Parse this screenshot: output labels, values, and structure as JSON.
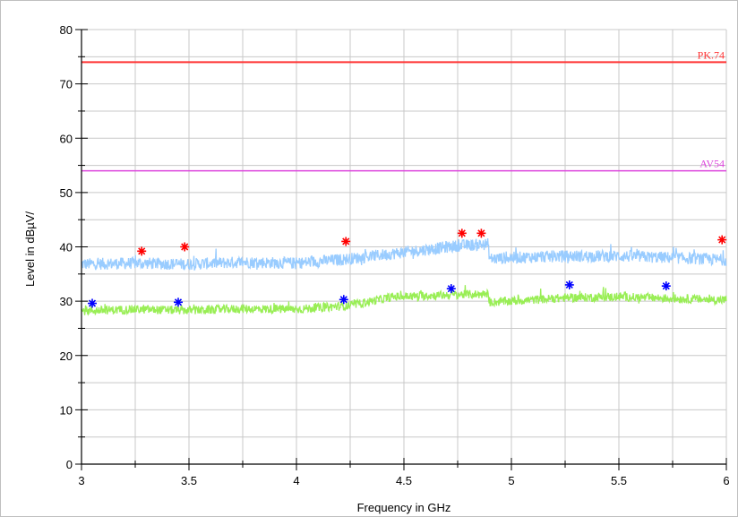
{
  "chart_data": {
    "type": "line",
    "xlabel": "Frequency in GHz",
    "ylabel": "Level in dBµV/",
    "xlim": [
      3,
      6
    ],
    "ylim": [
      0,
      80
    ],
    "x_ticks": [
      3,
      3.5,
      4,
      4.5,
      5,
      5.5,
      6
    ],
    "x_tick_labels": [
      "3",
      "3.5",
      "4",
      "4.5",
      "5",
      "5.5",
      "6"
    ],
    "y_ticks": [
      0,
      10,
      20,
      30,
      40,
      50,
      60,
      70,
      80
    ],
    "y_tick_labels": [
      "0",
      "10",
      "20",
      "30",
      "40",
      "50",
      "60",
      "70",
      "80"
    ],
    "grid": true,
    "limit_lines": [
      {
        "label": "PK.74",
        "value": 74,
        "color": "#ff3333"
      },
      {
        "label": "AV54",
        "value": 54,
        "color": "#dd44dd"
      }
    ],
    "series": [
      {
        "style": "noisy-band",
        "color": "#99ccff",
        "x": [
          3.0,
          3.25,
          3.5,
          3.75,
          4.0,
          4.25,
          4.5,
          4.75,
          4.89,
          4.9,
          5.0,
          5.25,
          5.5,
          5.75,
          6.0
        ],
        "values": [
          36.8,
          37.0,
          36.8,
          37.2,
          37.0,
          37.8,
          39.0,
          40.2,
          40.5,
          37.8,
          38.0,
          38.3,
          38.3,
          38.0,
          37.6
        ],
        "noise": 2.2
      },
      {
        "style": "noisy-band",
        "color": "#99ee55",
        "x": [
          3.0,
          3.25,
          3.5,
          3.75,
          4.0,
          4.25,
          4.45,
          4.75,
          4.89,
          4.9,
          5.0,
          5.25,
          5.5,
          5.75,
          6.0
        ],
        "values": [
          28.2,
          28.5,
          28.3,
          28.6,
          28.5,
          29.2,
          30.8,
          31.2,
          31.3,
          29.8,
          30.0,
          30.6,
          30.8,
          30.5,
          30.2
        ],
        "noise": 1.6
      },
      {
        "style": "markers",
        "color": "#ff0000",
        "x": [
          3.28,
          3.48,
          4.23,
          4.77,
          4.86,
          5.98
        ],
        "values": [
          39.2,
          40.0,
          41.0,
          42.5,
          42.5,
          41.3
        ]
      },
      {
        "style": "markers",
        "color": "#0000ff",
        "x": [
          3.05,
          3.45,
          4.22,
          4.72,
          5.27,
          5.72
        ],
        "values": [
          29.6,
          29.8,
          30.3,
          32.3,
          33.0,
          32.8
        ]
      }
    ]
  }
}
